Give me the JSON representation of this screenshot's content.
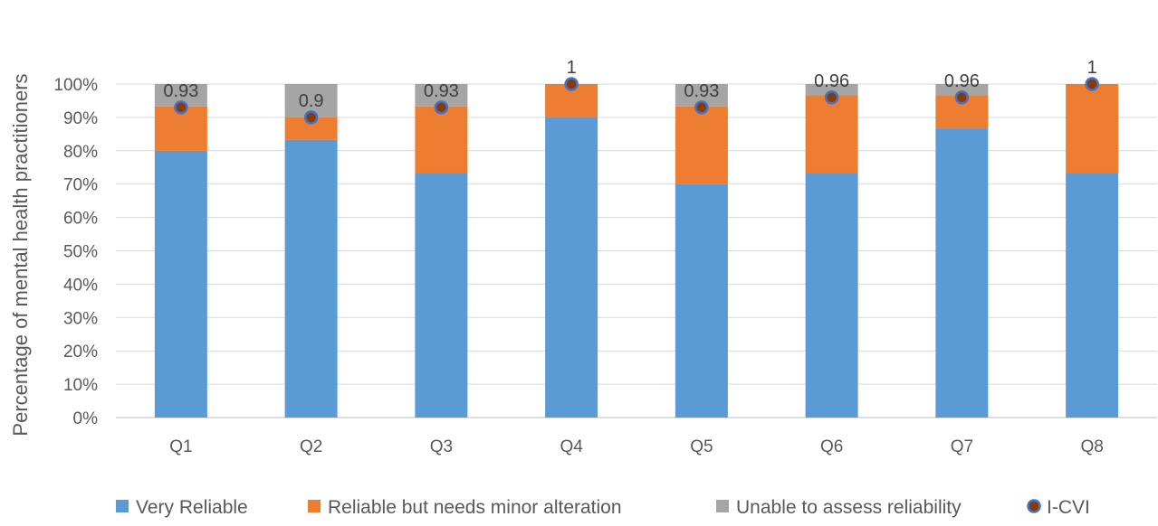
{
  "chart_data": {
    "type": "bar",
    "stacked": true,
    "categories": [
      "Q1",
      "Q2",
      "Q3",
      "Q4",
      "Q5",
      "Q6",
      "Q7",
      "Q8"
    ],
    "series": [
      {
        "name": "Very Reliable",
        "color": "#5b9bd5",
        "values": [
          80,
          83.3,
          73.3,
          90,
          70,
          73.3,
          86.7,
          73.3
        ]
      },
      {
        "name": "Reliable but needs minor alteration",
        "color": "#ed7d31",
        "values": [
          13.3,
          6.7,
          20,
          10,
          23.3,
          23.3,
          10,
          26.7
        ]
      },
      {
        "name": "Unable to assess reliability",
        "color": "#a5a5a5",
        "values": [
          6.7,
          10,
          6.7,
          0,
          6.7,
          3.4,
          3.3,
          0
        ]
      }
    ],
    "overlay": {
      "name": "I-CVI",
      "type": "scatter",
      "marker_fill": "#843c0c",
      "marker_stroke": "#4472c4",
      "values": [
        0.93,
        0.9,
        0.93,
        1,
        0.93,
        0.96,
        0.96,
        1
      ],
      "labels": [
        "0.93",
        "0.9",
        "0.93",
        "1",
        "0.93",
        "0.96",
        "0.96",
        "1"
      ]
    },
    "ylabel": "Percentage of mental health practitioners",
    "ylim": [
      0,
      100
    ],
    "yticks": [
      "0%",
      "10%",
      "20%",
      "30%",
      "40%",
      "50%",
      "60%",
      "70%",
      "80%",
      "90%",
      "100%"
    ],
    "grid": true,
    "legend_position": "bottom"
  }
}
